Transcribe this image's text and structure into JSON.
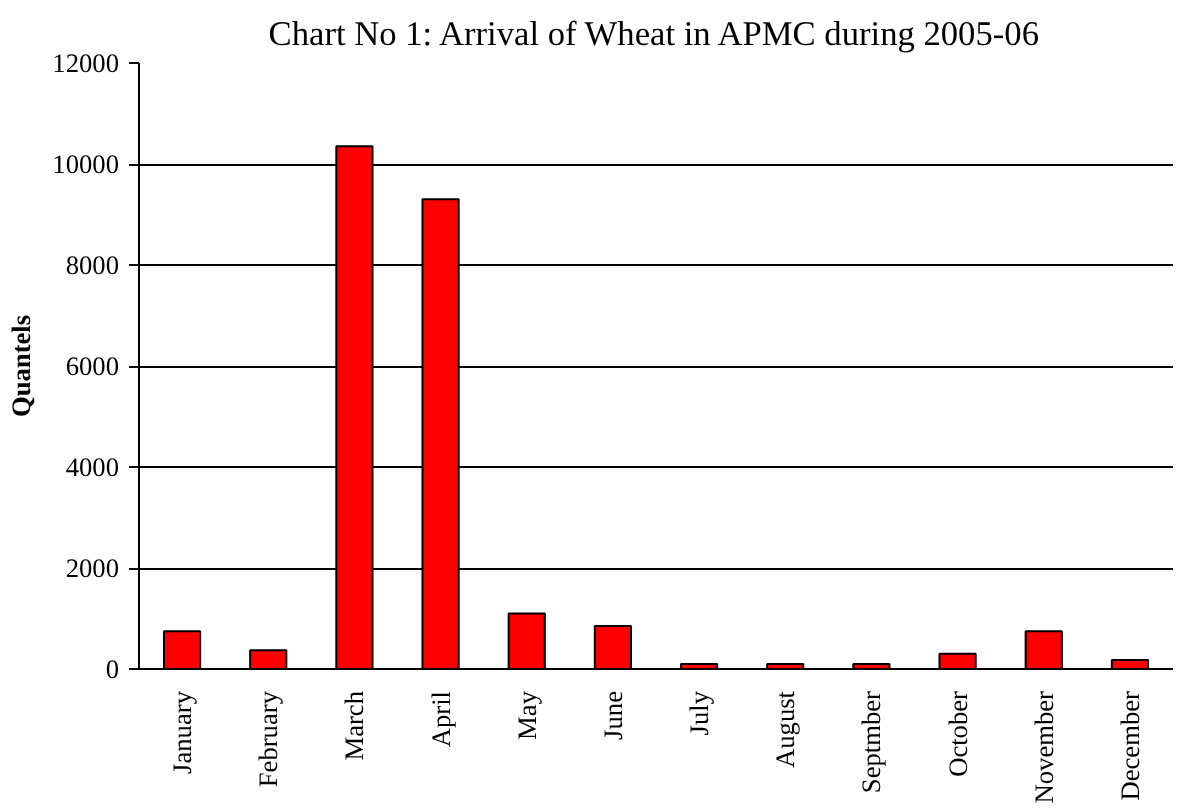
{
  "chart_data": {
    "type": "bar",
    "title": "Chart No 1: Arrival of Wheat in APMC during 2005-06",
    "ylabel": "Quantels",
    "categories": [
      "January",
      "February",
      "March",
      "April",
      "May",
      "June",
      "July",
      "August",
      "Septmber",
      "October",
      "November",
      "December"
    ],
    "values": [
      750,
      370,
      10350,
      9300,
      1100,
      850,
      100,
      100,
      100,
      300,
      750,
      180
    ],
    "color": "#ff0000",
    "ylim": [
      0,
      12000
    ],
    "yticks": [
      0,
      2000,
      4000,
      6000,
      8000,
      10000,
      12000
    ],
    "grid": "y"
  }
}
